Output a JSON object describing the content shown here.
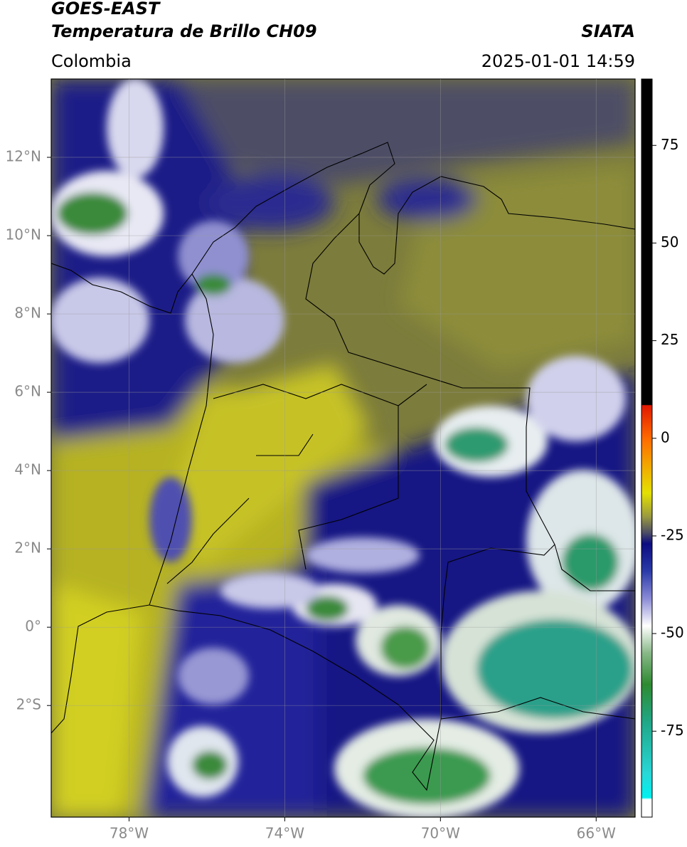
{
  "header": {
    "title_line1": "GOES-EAST",
    "title_line2": "Temperatura de Brillo CH09",
    "source": "SIATA",
    "region": "Colombia",
    "datetime": "2025-01-01 14:59"
  },
  "map": {
    "xlim": [
      -80,
      -65
    ],
    "ylim": [
      -4.85,
      14
    ],
    "xticks": [
      {
        "value": -78,
        "label": "78°W"
      },
      {
        "value": -74,
        "label": "74°W"
      },
      {
        "value": -70,
        "label": "70°W"
      },
      {
        "value": -66,
        "label": "66°W"
      }
    ],
    "yticks": [
      {
        "value": 12,
        "label": "12°N"
      },
      {
        "value": 10,
        "label": "10°N"
      },
      {
        "value": 8,
        "label": "8°N"
      },
      {
        "value": 6,
        "label": "6°N"
      },
      {
        "value": 4,
        "label": "4°N"
      },
      {
        "value": 2,
        "label": "2°N"
      },
      {
        "value": 0,
        "label": "0°"
      },
      {
        "value": -2,
        "label": "2°S"
      }
    ],
    "grid": true
  },
  "colorbar": {
    "lim": [
      -97,
      92
    ],
    "ticks": [
      75,
      50,
      25,
      0,
      -25,
      -50,
      -75
    ],
    "stops": [
      {
        "value": 92,
        "color": "#000000"
      },
      {
        "value": 8.6,
        "color": "#000000"
      },
      {
        "value": 8.4,
        "color": "#e01800"
      },
      {
        "value": 0,
        "color": "#ff6a00"
      },
      {
        "value": -8,
        "color": "#f0b000"
      },
      {
        "value": -14,
        "color": "#e4e000"
      },
      {
        "value": -20,
        "color": "#9a9a40"
      },
      {
        "value": -24,
        "color": "#505064"
      },
      {
        "value": -27,
        "color": "#0c0c80"
      },
      {
        "value": -34,
        "color": "#2a3aa8"
      },
      {
        "value": -41,
        "color": "#8a8ad6"
      },
      {
        "value": -48,
        "color": "#ffffff"
      },
      {
        "value": -55,
        "color": "#88b888"
      },
      {
        "value": -63,
        "color": "#2e8a30"
      },
      {
        "value": -73,
        "color": "#20a88a"
      },
      {
        "value": -86,
        "color": "#28d8d8"
      },
      {
        "value": -92,
        "color": "#00f0f0"
      },
      {
        "value": -92.5,
        "color": "#ffffff"
      },
      {
        "value": -97,
        "color": "#ffffff"
      }
    ]
  }
}
